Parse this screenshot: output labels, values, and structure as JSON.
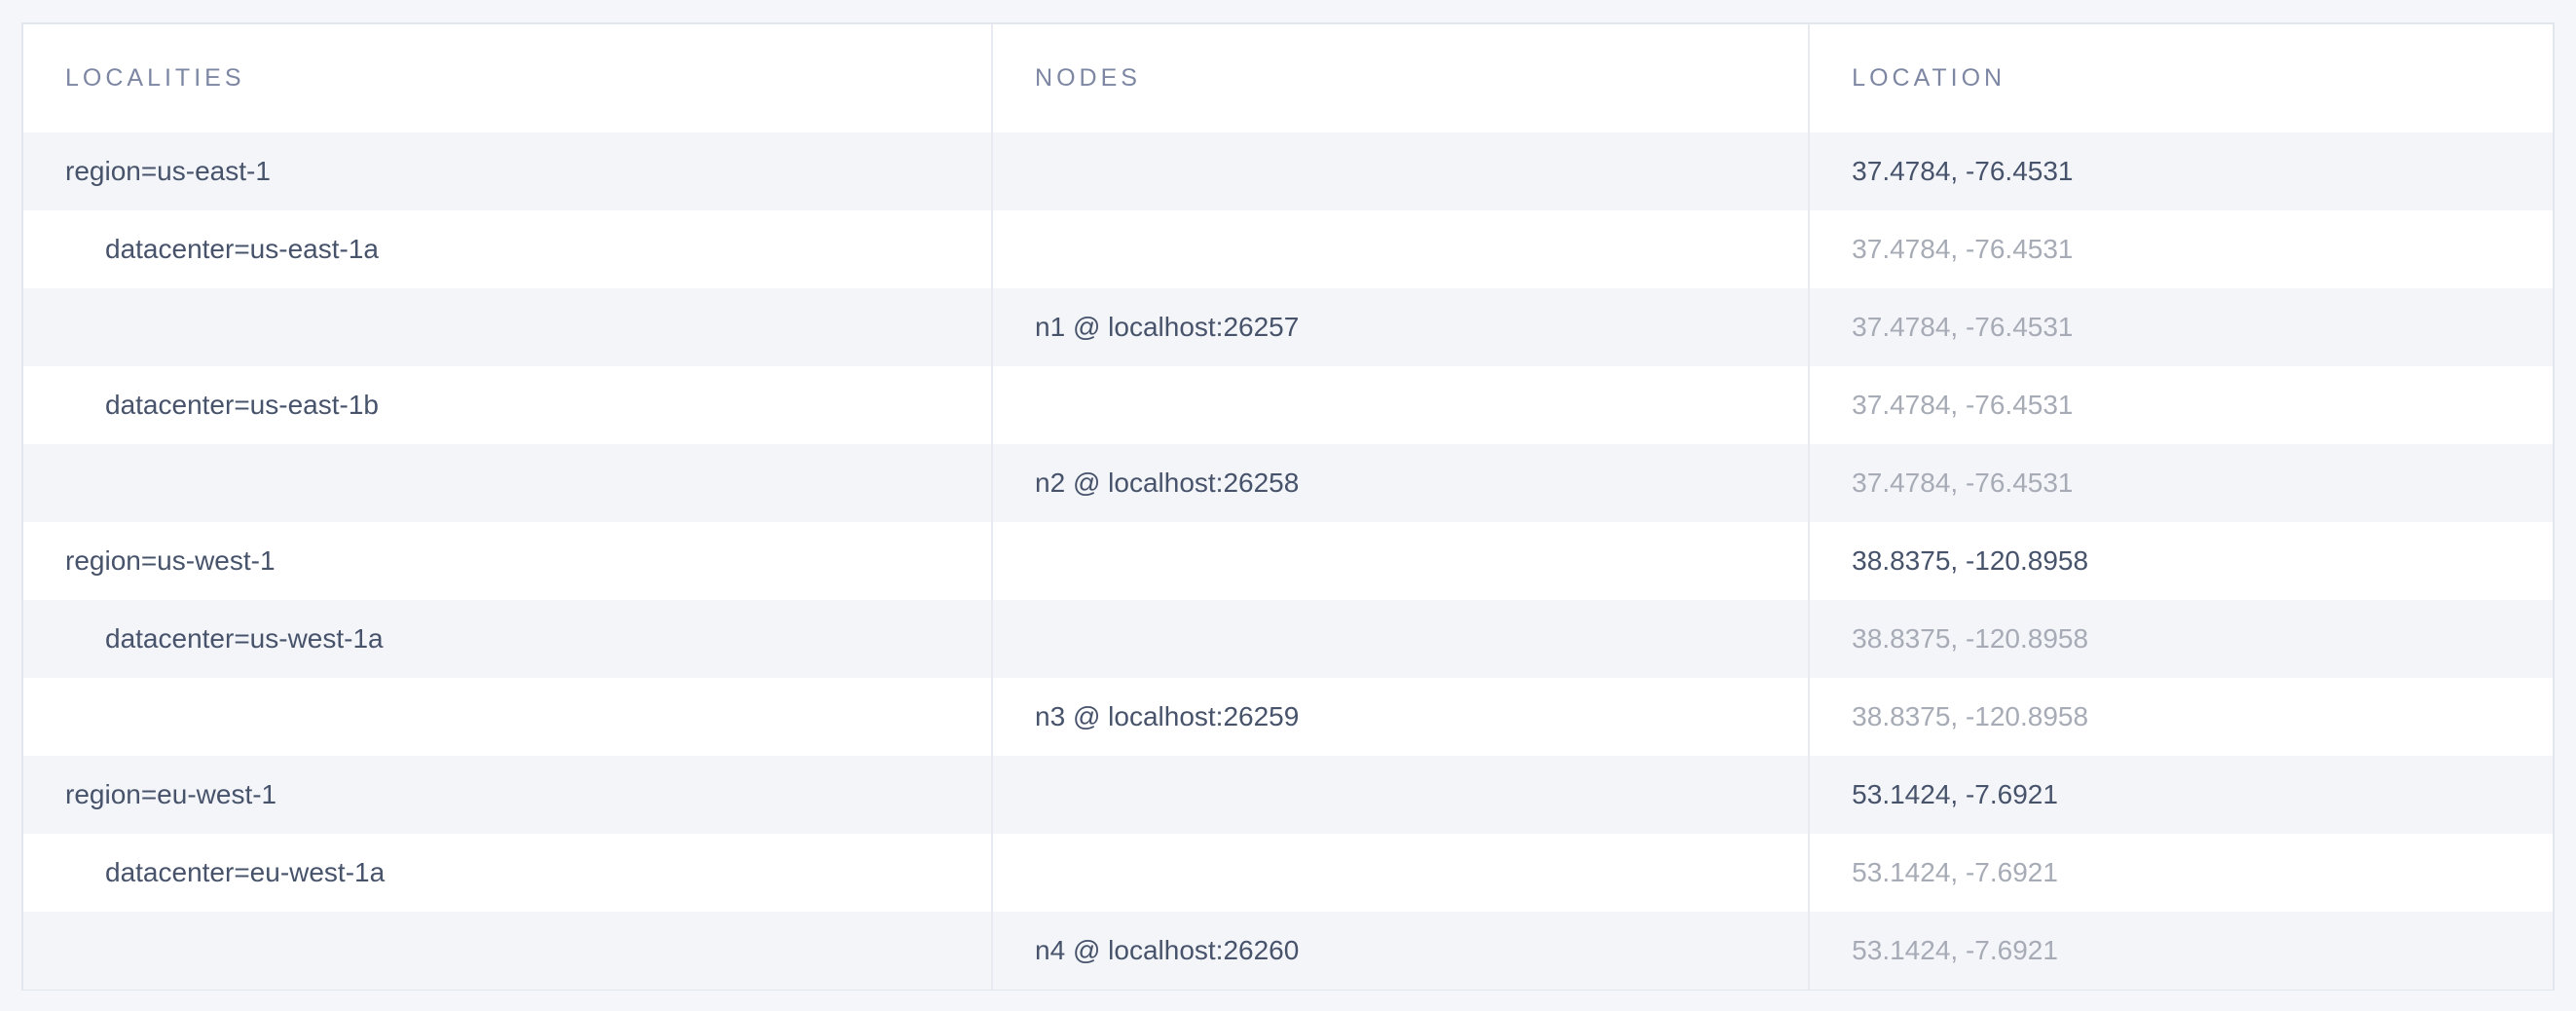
{
  "table": {
    "columns": [
      {
        "label": "LOCALITIES"
      },
      {
        "label": "NODES"
      },
      {
        "label": "LOCATION"
      }
    ],
    "rows": [
      {
        "locality": "region=us-east-1",
        "depth": 1,
        "node": "",
        "location": "37.4784, -76.4531",
        "location_emphasis": "dark"
      },
      {
        "locality": "datacenter=us-east-1a",
        "depth": 2,
        "node": "",
        "location": "37.4784, -76.4531",
        "location_emphasis": "light"
      },
      {
        "locality": "",
        "depth": 0,
        "node": "n1 @ localhost:26257",
        "location": "37.4784, -76.4531",
        "location_emphasis": "light"
      },
      {
        "locality": "datacenter=us-east-1b",
        "depth": 2,
        "node": "",
        "location": "37.4784, -76.4531",
        "location_emphasis": "light"
      },
      {
        "locality": "",
        "depth": 0,
        "node": "n2 @ localhost:26258",
        "location": "37.4784, -76.4531",
        "location_emphasis": "light"
      },
      {
        "locality": "region=us-west-1",
        "depth": 1,
        "node": "",
        "location": "38.8375, -120.8958",
        "location_emphasis": "dark"
      },
      {
        "locality": "datacenter=us-west-1a",
        "depth": 2,
        "node": "",
        "location": "38.8375, -120.8958",
        "location_emphasis": "light"
      },
      {
        "locality": "",
        "depth": 0,
        "node": "n3 @ localhost:26259",
        "location": "38.8375, -120.8958",
        "location_emphasis": "light"
      },
      {
        "locality": "region=eu-west-1",
        "depth": 1,
        "node": "",
        "location": "53.1424, -7.6921",
        "location_emphasis": "dark"
      },
      {
        "locality": "datacenter=eu-west-1a",
        "depth": 2,
        "node": "",
        "location": "53.1424, -7.6921",
        "location_emphasis": "light"
      },
      {
        "locality": "",
        "depth": 0,
        "node": "n4 @ localhost:26260",
        "location": "53.1424, -7.6921",
        "location_emphasis": "light"
      }
    ]
  },
  "colors": {
    "page-bg": "#f4f6f9",
    "stripe-bg": "#f4f5f9",
    "row-white": "#ffffff",
    "border": "#e2e7ee",
    "separator": "#e7ebf1",
    "text-dark": "#47536b",
    "text-light": "#a6abb6",
    "header-text": "#7d87a3"
  }
}
